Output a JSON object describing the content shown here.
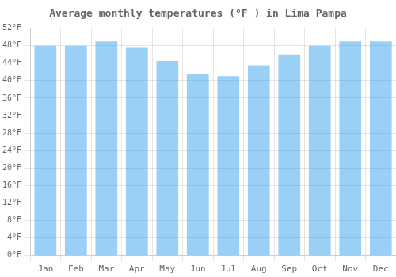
{
  "chart_data": {
    "type": "bar",
    "title": "Average monthly temperatures (°F ) in Lima Pampa",
    "categories": [
      "Jan",
      "Feb",
      "Mar",
      "Apr",
      "May",
      "Jun",
      "Jul",
      "Aug",
      "Sep",
      "Oct",
      "Nov",
      "Dec"
    ],
    "values": [
      48.0,
      48.0,
      49.0,
      47.5,
      44.5,
      41.5,
      41.0,
      43.5,
      46.0,
      48.0,
      49.0,
      49.0
    ],
    "ylim": [
      0,
      52
    ],
    "yticks": [
      {
        "value": 0,
        "label": "0°F"
      },
      {
        "value": 4,
        "label": "4°F"
      },
      {
        "value": 8,
        "label": "8°F"
      },
      {
        "value": 12,
        "label": "12°F"
      },
      {
        "value": 16,
        "label": "16°F"
      },
      {
        "value": 20,
        "label": "20°F"
      },
      {
        "value": 24,
        "label": "24°F"
      },
      {
        "value": 28,
        "label": "28°F"
      },
      {
        "value": 32,
        "label": "32°F"
      },
      {
        "value": 36,
        "label": "36°F"
      },
      {
        "value": 40,
        "label": "40°F"
      },
      {
        "value": 44,
        "label": "44°F"
      },
      {
        "value": 48,
        "label": "48°F"
      },
      {
        "value": 52,
        "label": "52°F"
      }
    ],
    "grid": true
  }
}
